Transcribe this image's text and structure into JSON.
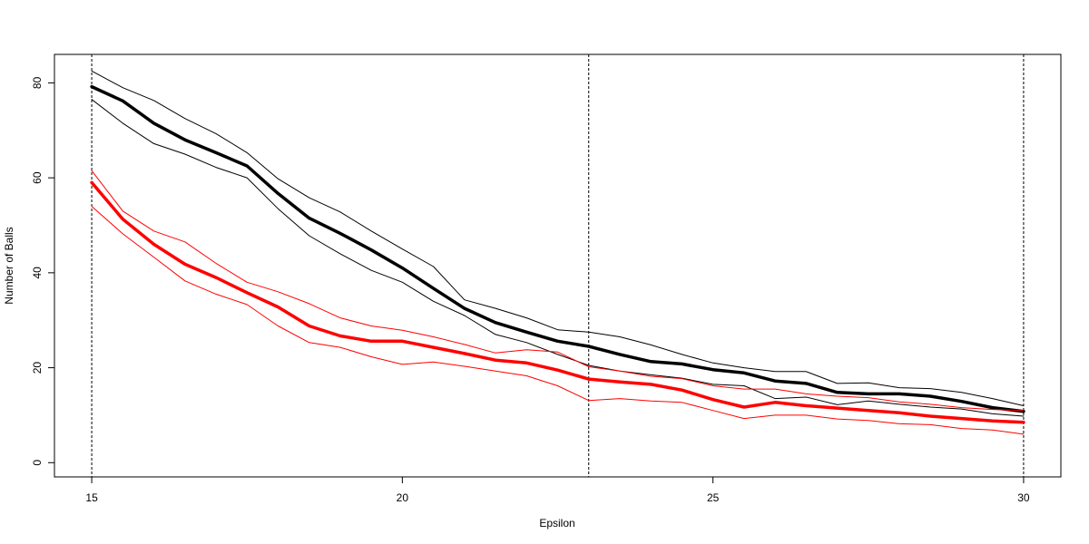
{
  "chart_data": {
    "type": "line",
    "title": "",
    "xlabel": "Epsilon",
    "ylabel": "Number of Balls",
    "xlim": [
      14.4,
      30.6
    ],
    "ylim": [
      -3,
      86
    ],
    "x_ticks": [
      15,
      20,
      25,
      30
    ],
    "y_ticks": [
      0,
      20,
      40,
      60,
      80
    ],
    "grid": false,
    "legend": "none",
    "vlines": [
      15,
      23,
      30
    ],
    "x": [
      15,
      15.5,
      16,
      16.5,
      17,
      17.5,
      18,
      18.5,
      19,
      19.5,
      20,
      20.5,
      21,
      21.5,
      22,
      22.5,
      23,
      23.5,
      24,
      24.5,
      25,
      25.5,
      26,
      26.5,
      27,
      27.5,
      28,
      28.5,
      29,
      29.5,
      30
    ],
    "series": [
      {
        "color": "#000000",
        "width": 3.5,
        "values": [
          79.2,
          76.2,
          71.5,
          68,
          65.3,
          62.5,
          56.7,
          51.5,
          48.3,
          44.8,
          41,
          36.7,
          32.5,
          29.5,
          27.5,
          25.6,
          24.5,
          22.8,
          21.3,
          20.8,
          19.6,
          18.9,
          17.2,
          16.7,
          14.8,
          14.5,
          14.5,
          14,
          12.9,
          11.6,
          10.8
        ]
      },
      {
        "color": "#000000",
        "width": 1,
        "values": [
          82.5,
          79,
          76.3,
          72.5,
          69.3,
          65.3,
          59.8,
          55.8,
          52.8,
          48.8,
          45,
          41.3,
          34.3,
          32.5,
          30.5,
          28,
          27.5,
          26.5,
          24.8,
          22.8,
          21,
          20,
          19.2,
          19.2,
          16.7,
          16.8,
          15.8,
          15.6,
          14.8,
          13.5,
          12
        ]
      },
      {
        "color": "#000000",
        "width": 1,
        "values": [
          76.5,
          71.5,
          67.2,
          65,
          62.2,
          60,
          53.5,
          47.8,
          44,
          40.5,
          38,
          34,
          31,
          27,
          25.3,
          22.8,
          20.5,
          19.3,
          18.5,
          17.8,
          16.5,
          16.2,
          13.5,
          13.8,
          12.2,
          13,
          12.3,
          11.7,
          11.3,
          10.3,
          9.8
        ]
      },
      {
        "color": "#ff0000",
        "width": 3.5,
        "values": [
          59,
          51.3,
          46,
          41.8,
          39,
          35.8,
          32.8,
          28.8,
          26.7,
          25.6,
          25.6,
          24.3,
          23,
          21.6,
          21,
          19.5,
          17.6,
          17,
          16.5,
          15.3,
          13.3,
          11.7,
          12.7,
          12,
          11.5,
          11,
          10.5,
          9.8,
          9.3,
          8.8,
          8.5
        ]
      },
      {
        "color": "#ff0000",
        "width": 1,
        "values": [
          61.5,
          53,
          48.8,
          46.5,
          42,
          38,
          36,
          33.5,
          30.5,
          28.8,
          27.9,
          26.5,
          24.9,
          23.1,
          23.8,
          23.3,
          20.2,
          19.3,
          18.2,
          17.7,
          16.2,
          15.5,
          15.5,
          14.5,
          14,
          13.7,
          12.8,
          12.3,
          11.6,
          11.2,
          11
        ]
      },
      {
        "color": "#ff0000",
        "width": 1,
        "values": [
          54,
          48.2,
          43.3,
          38.3,
          35.5,
          33.3,
          28.8,
          25.3,
          24.3,
          22.3,
          20.7,
          21.2,
          20.3,
          19.3,
          18.3,
          16.2,
          13.1,
          13.5,
          13,
          12.7,
          11,
          9.3,
          10,
          10,
          9.2,
          8.9,
          8.2,
          8,
          7.2,
          6.9,
          6
        ]
      }
    ]
  }
}
